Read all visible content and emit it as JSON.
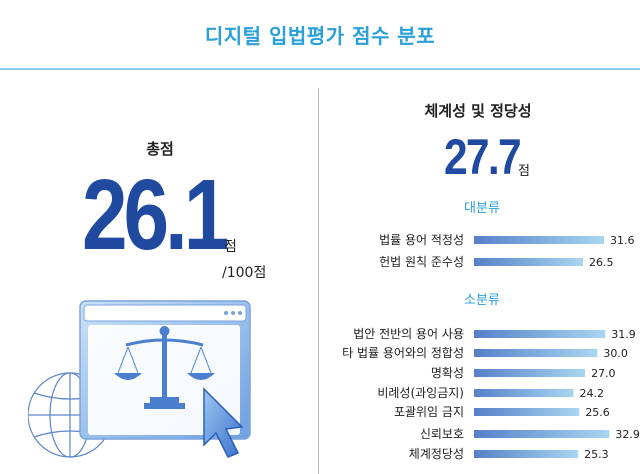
{
  "page": {
    "title": "디지털 입법평가 점수 분포"
  },
  "total": {
    "label": "총점",
    "score": "26.1",
    "unit": "점",
    "max": "/100점"
  },
  "systematic": {
    "label": "체계성 및 정당성",
    "score": "27.7",
    "unit": "점"
  },
  "colors": {
    "accent": "#2a9fd8",
    "score_blue": "#1f4aa0",
    "bar_dark": "#5580c9",
    "bar_light": "#a9d6f0"
  },
  "illustration": {
    "icons": [
      "monitor-icon",
      "scales-of-justice-icon",
      "cursor-arrow-icon",
      "globe-grid-icon"
    ]
  },
  "chart_data": {
    "type": "bar",
    "orientation": "horizontal",
    "groups": [
      {
        "name": "대분류",
        "categories": [
          "법률 용어 적정성",
          "헌법 원칙 준수성"
        ],
        "values": [
          31.6,
          26.5
        ]
      },
      {
        "name": "소분류",
        "categories": [
          "법안 전반의 용어 사용",
          "타 법률 용어와의 정합성",
          "명확성",
          "비례성(과잉금지)",
          "포괄위임 금지",
          "신뢰보호",
          "체계정당성"
        ],
        "values": [
          31.9,
          30.0,
          27.0,
          24.2,
          25.6,
          32.9,
          25.3
        ]
      }
    ],
    "title": "",
    "xlabel": "",
    "ylabel": "",
    "xlim": [
      0,
      35
    ],
    "grid": false,
    "legend": "none"
  }
}
